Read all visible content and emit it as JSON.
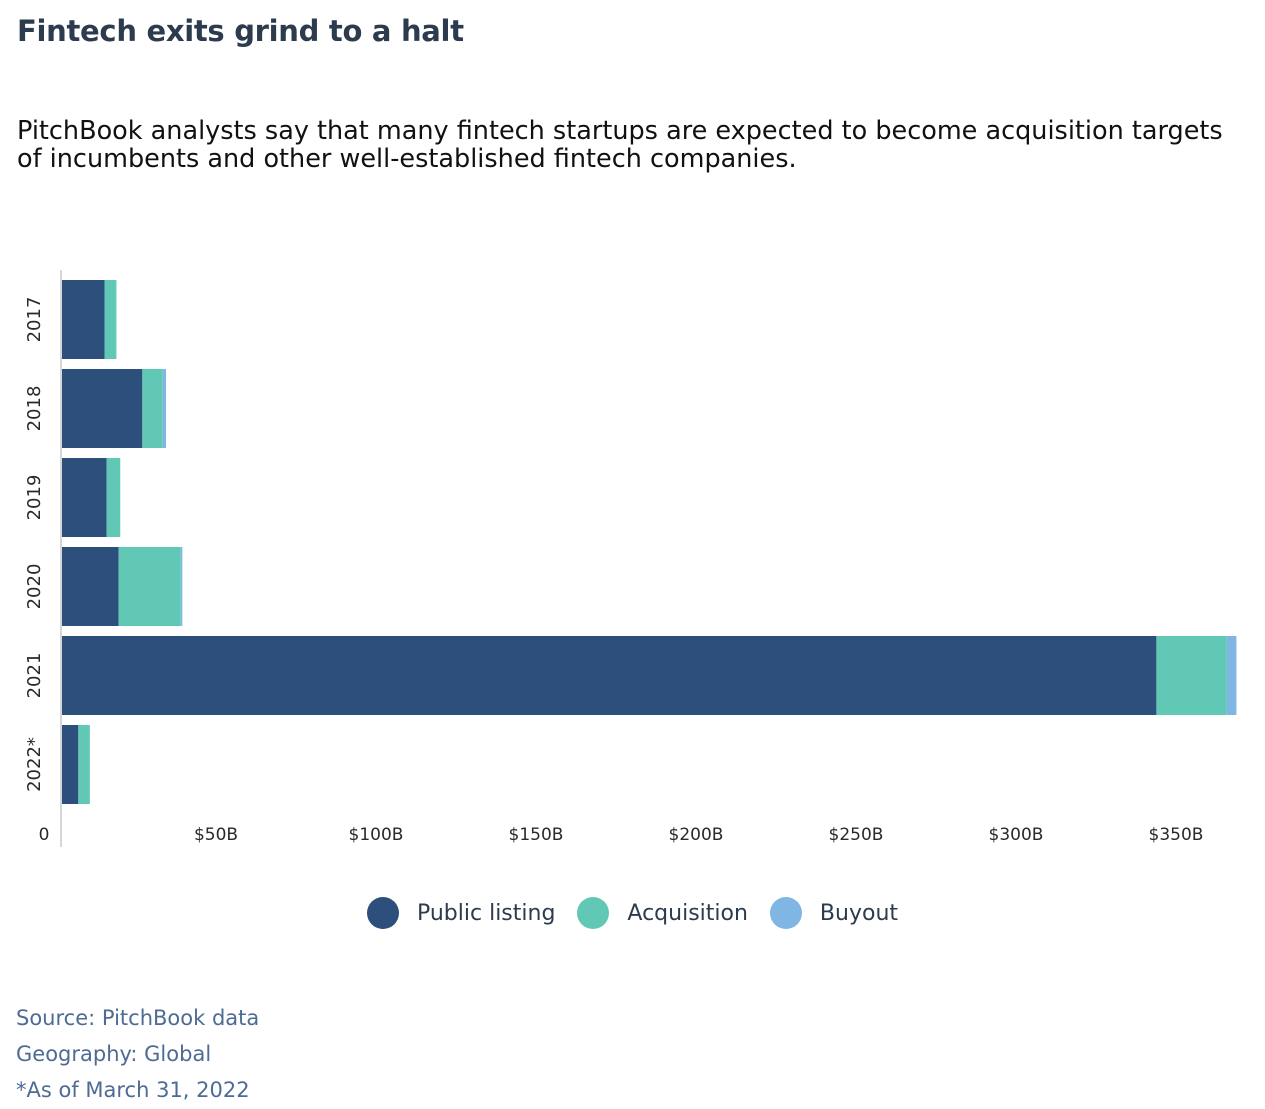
{
  "title": "Fintech exits grind to a halt",
  "subtitle": "PitchBook analysts say that many fintech startups are expected to become acquisition targets of incumbents and other well-established fintech companies.",
  "chart_data": {
    "type": "bar",
    "orientation": "horizontal",
    "stacked": true,
    "categories": [
      "2017",
      "2018",
      "2019",
      "2020",
      "2021",
      "2022*"
    ],
    "series": [
      {
        "name": "Public listing",
        "color": "#2c4f7c",
        "values": [
          13.3,
          25.1,
          13.9,
          17.7,
          342.0,
          5.1
        ]
      },
      {
        "name": "Acquisition",
        "color": "#62c8b6",
        "values": [
          3.7,
          6.4,
          4.3,
          19.4,
          22.0,
          3.6
        ]
      },
      {
        "name": "Buyout",
        "color": "#7fb6e3",
        "values": [
          0,
          1.0,
          0,
          0.5,
          3.0,
          0
        ]
      }
    ],
    "xlim": [
      0,
      367
    ],
    "xticks": [
      "0",
      "$50B",
      "$100B",
      "$150B",
      "$200B",
      "$250B",
      "$300B",
      "$350B"
    ],
    "xtick_values": [
      0,
      50,
      100,
      150,
      200,
      250,
      300,
      350
    ],
    "legend_position": "bottom-center",
    "grid": false
  },
  "notes": [
    "Source: PitchBook data",
    "Geography: Global",
    "*As of March 31, 2022"
  ]
}
